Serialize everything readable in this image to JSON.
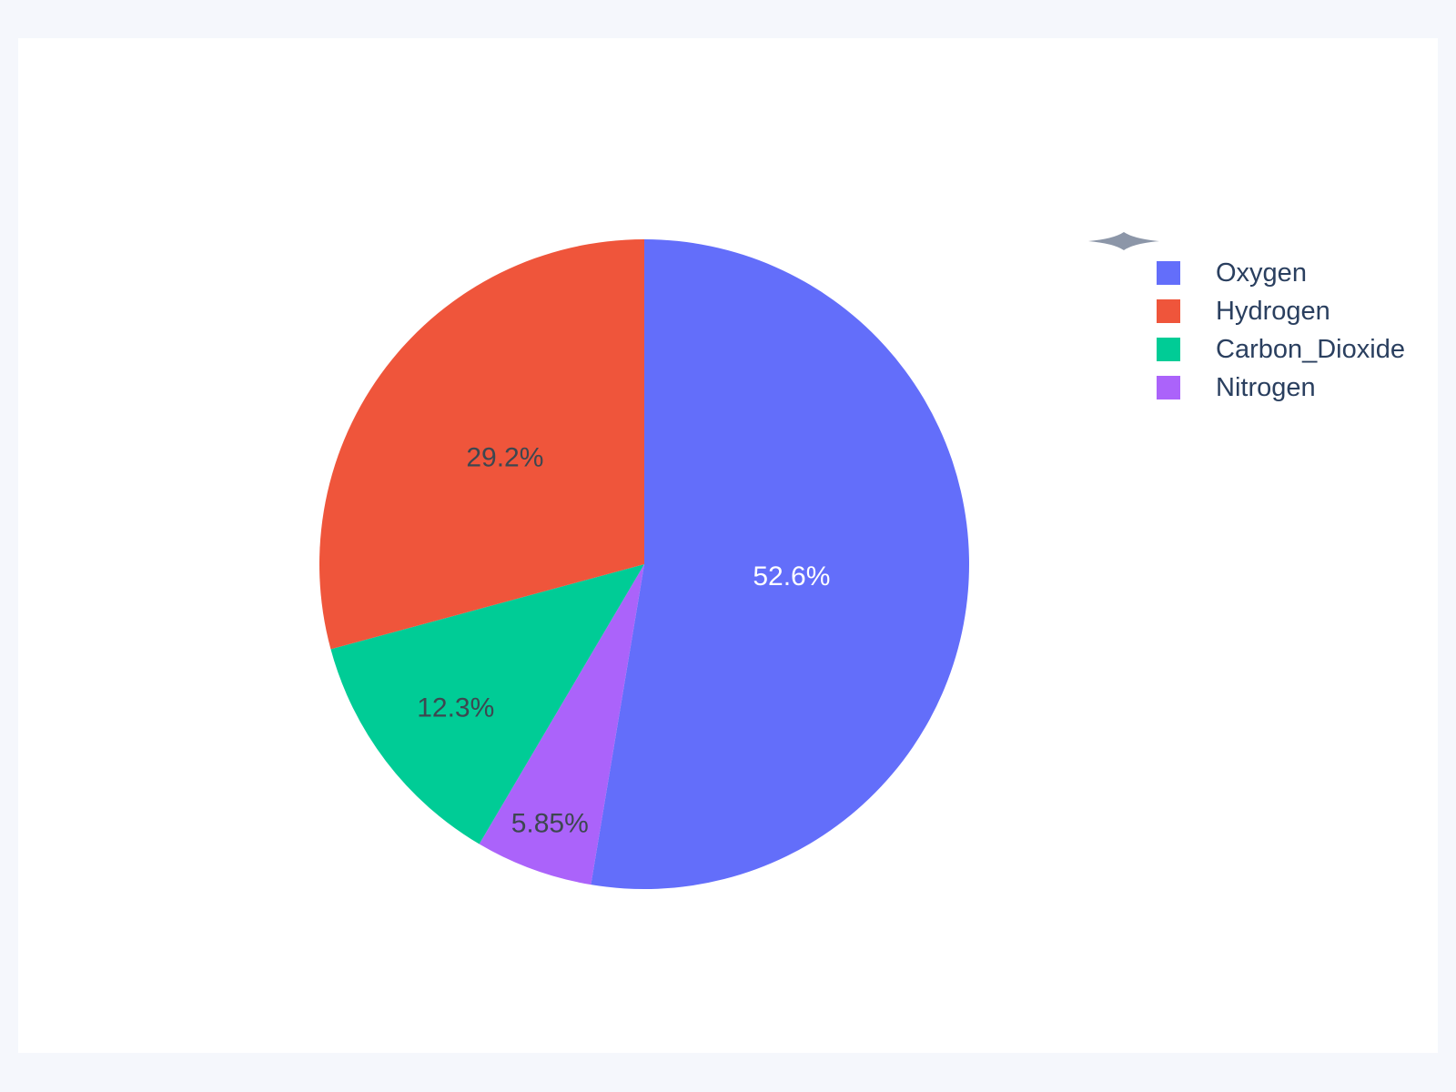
{
  "page": {
    "background_color": "#F5F7FC",
    "card_background_color": "#FFFFFF"
  },
  "decoration": {
    "icon": "sparkle-icon",
    "color": "#8C96A8"
  },
  "chart_data": {
    "type": "pie",
    "title": "",
    "slices": [
      {
        "label": "Oxygen",
        "value": 52.6,
        "display": "52.6%",
        "color": "#636EFA",
        "text_color": "#FFFFFF"
      },
      {
        "label": "Hydrogen",
        "value": 29.2,
        "display": "29.2%",
        "color": "#EF553B",
        "text_color": "#3D4750"
      },
      {
        "label": "Carbon_Dioxide",
        "value": 12.3,
        "display": "12.3%",
        "color": "#00CC96",
        "text_color": "#3D4750"
      },
      {
        "label": "Nitrogen",
        "value": 5.85,
        "display": "5.85%",
        "color": "#AB63FA",
        "text_color": "#3D4750"
      }
    ],
    "legend": {
      "position": "right",
      "entries": [
        "Oxygen",
        "Hydrogen",
        "Carbon_Dioxide",
        "Nitrogen"
      ],
      "text_color": "#2A3F5F"
    },
    "layout": {
      "center": [
        708,
        620
      ],
      "radius": 357,
      "start": "top",
      "first_slice_direction": "clockwise",
      "label_radius_factors": [
        0.455,
        0.54,
        0.73,
        0.85
      ],
      "label_font_size": 30
    }
  }
}
